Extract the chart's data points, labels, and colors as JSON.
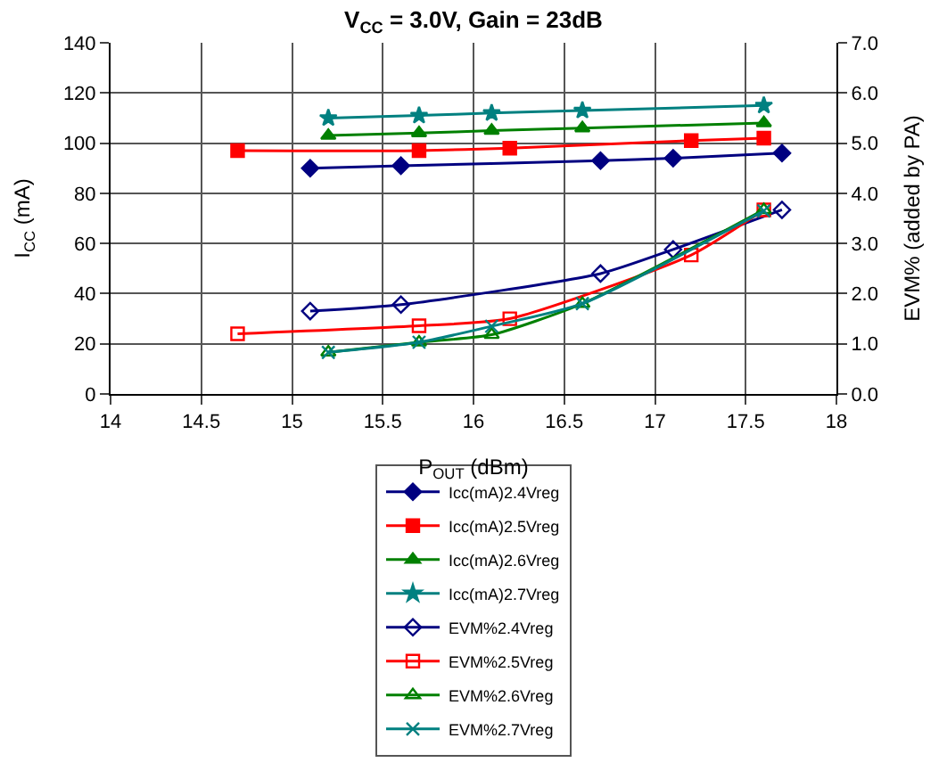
{
  "chart_data": {
    "type": "line",
    "title": "V$_{CC}$ = 3.0V, Gain = 23dB",
    "xlabel": "P$_{OUT}$ (dBm)",
    "ylabel": "I$_{CC}$ (mA)",
    "y2label": "EVM% (added by PA)",
    "xlim": [
      14,
      18
    ],
    "xticks": [
      14,
      14.5,
      15,
      15.5,
      16,
      16.5,
      17,
      17.5,
      18
    ],
    "ylim": [
      0,
      140
    ],
    "yticks": [
      0,
      20,
      40,
      60,
      80,
      100,
      120,
      140
    ],
    "y2lim": [
      0,
      7
    ],
    "y2ticks": [
      {
        "value": 0,
        "label": "0.0"
      },
      {
        "value": 1,
        "label": "1.0"
      },
      {
        "value": 2,
        "label": "2.0"
      },
      {
        "value": 3,
        "label": "3.0"
      },
      {
        "value": 4,
        "label": "4.0"
      },
      {
        "value": 5,
        "label": "5.0"
      },
      {
        "value": 6,
        "label": "6.0"
      },
      {
        "value": 7,
        "label": "7.0"
      }
    ],
    "grid": true,
    "legend": "bottom",
    "series": [
      {
        "name": "Icc(mA)2.4Vreg",
        "color": "#000080",
        "marker": "diamond",
        "x": [
          15.1,
          15.6,
          16.7,
          17.1,
          17.7
        ],
        "values": [
          90,
          91,
          93,
          94,
          96
        ]
      },
      {
        "name": "Icc(mA)2.5Vreg",
        "color": "#ff0000",
        "marker": "square",
        "x": [
          14.7,
          15.7,
          16.2,
          17.2,
          17.6
        ],
        "values": [
          97,
          97,
          98,
          101,
          102
        ]
      },
      {
        "name": "Icc(mA)2.6Vreg",
        "color": "#008000",
        "marker": "triangle",
        "x": [
          15.2,
          15.7,
          16.1,
          16.6,
          17.6
        ],
        "values": [
          103,
          104,
          105,
          106,
          108
        ]
      },
      {
        "name": "Icc(mA)2.7Vreg",
        "color": "#008080",
        "marker": "star",
        "x": [
          15.2,
          15.7,
          16.1,
          16.6,
          17.6
        ],
        "values": [
          110,
          111,
          112,
          113,
          115
        ]
      },
      {
        "name": "EVM%2.4Vreg",
        "color": "#000080",
        "marker": "diamond-open",
        "axis": "y2",
        "x": [
          15.1,
          15.6,
          16.7,
          17.1,
          17.7
        ],
        "values": [
          1.65,
          1.78,
          2.4,
          2.88,
          3.67
        ]
      },
      {
        "name": "EVM%2.5Vreg",
        "color": "#ff0000",
        "marker": "square-open",
        "axis": "y2",
        "x": [
          14.7,
          15.7,
          16.2,
          17.2,
          17.6
        ],
        "values": [
          1.2,
          1.36,
          1.5,
          2.77,
          3.67
        ]
      },
      {
        "name": "EVM%2.6Vreg",
        "color": "#008000",
        "marker": "triangle-open",
        "axis": "y2",
        "x": [
          15.2,
          15.7,
          16.1,
          16.6,
          17.6
        ],
        "values": [
          0.83,
          1.03,
          1.18,
          1.8,
          3.67
        ]
      },
      {
        "name": "EVM%2.7Vreg",
        "color": "#008080",
        "marker": "cross",
        "axis": "y2",
        "x": [
          15.2,
          15.7,
          16.1,
          16.6,
          17.6
        ],
        "values": [
          0.83,
          1.03,
          1.35,
          1.8,
          3.65
        ]
      }
    ]
  }
}
